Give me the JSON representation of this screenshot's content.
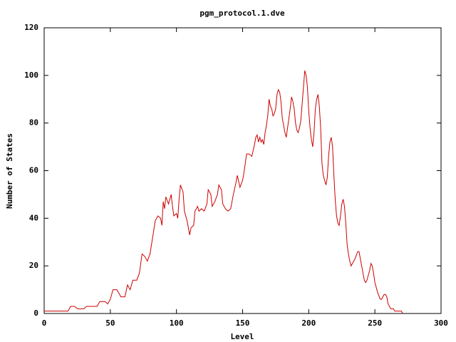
{
  "chart_data": {
    "type": "line",
    "title": "pgm_protocol.1.dve",
    "x_label": "Level",
    "y_label": "Number of States",
    "xlim": [
      0,
      300
    ],
    "xticks": [
      0,
      50,
      100,
      150,
      200,
      250,
      300
    ],
    "ylim": [
      0,
      120
    ],
    "yticks": [
      0,
      20,
      40,
      60,
      80,
      100,
      120
    ],
    "series": [
      {
        "color": "#cc0000",
        "x": [
          0,
          18,
          20,
          23,
          25,
          30,
          32,
          40,
          42,
          46,
          48,
          50,
          52,
          55,
          57,
          58,
          61,
          63,
          65,
          67,
          70,
          72,
          74,
          76,
          78,
          80,
          82,
          84,
          86,
          88,
          89,
          90,
          91,
          92,
          94,
          96,
          97,
          98,
          100,
          101,
          102,
          103,
          105,
          106,
          108,
          110,
          111,
          113,
          114,
          116,
          117,
          119,
          121,
          123,
          124,
          126,
          127,
          129,
          131,
          132,
          134,
          135,
          137,
          139,
          141,
          143,
          145,
          146,
          148,
          150,
          151,
          153,
          155,
          157,
          159,
          160,
          161,
          162,
          163,
          164,
          165,
          166,
          167,
          168,
          169,
          170,
          171,
          172,
          173,
          174,
          175,
          176,
          177,
          178,
          179,
          180,
          182,
          183,
          185,
          186,
          187,
          188,
          189,
          190,
          191,
          192,
          193,
          194,
          195,
          196,
          197,
          198,
          199,
          200,
          201,
          202,
          203,
          204,
          205,
          206,
          207,
          208,
          209,
          210,
          211,
          212,
          213,
          214,
          215,
          216,
          217,
          218,
          219,
          220,
          221,
          222,
          223,
          224,
          225,
          226,
          227,
          228,
          229,
          230,
          231,
          232,
          233,
          235,
          237,
          238,
          239,
          240,
          241,
          242,
          243,
          244,
          246,
          247,
          248,
          249,
          250,
          252,
          254,
          255,
          256,
          257,
          258,
          259,
          260,
          261,
          262,
          264,
          265,
          270,
          271
        ],
        "values": [
          1,
          1,
          3,
          3,
          2,
          2,
          3,
          3,
          5,
          5,
          4,
          6,
          10,
          10,
          8,
          7,
          7,
          12,
          10,
          14,
          14,
          17,
          25,
          24,
          22,
          25,
          32,
          39,
          41,
          40,
          37,
          47,
          44,
          49,
          46,
          50,
          45,
          41,
          42,
          40,
          48,
          54,
          51,
          43,
          39,
          33,
          36,
          37,
          43,
          45,
          43,
          44,
          43,
          46,
          52,
          50,
          45,
          47,
          50,
          54,
          52,
          46,
          44,
          43,
          44,
          50,
          55,
          58,
          53,
          56,
          59,
          67,
          67,
          66,
          71,
          74,
          75,
          72,
          74,
          72,
          73,
          71,
          76,
          79,
          83,
          90,
          87,
          86,
          83,
          84,
          86,
          92,
          94,
          93,
          89,
          82,
          76,
          74,
          82,
          86,
          91,
          89,
          86,
          80,
          77,
          76,
          78,
          81,
          88,
          95,
          102,
          100,
          95,
          85,
          78,
          73,
          70,
          76,
          86,
          90,
          92,
          87,
          78,
          63,
          58,
          56,
          54,
          57,
          66,
          72,
          74,
          70,
          58,
          48,
          41,
          38,
          37,
          41,
          46,
          48,
          45,
          38,
          29,
          25,
          22,
          20,
          21,
          23,
          26,
          26,
          23,
          20,
          17,
          14,
          13,
          14,
          18,
          21,
          20,
          17,
          13,
          9,
          6,
          6,
          7,
          8,
          8,
          7,
          4,
          3,
          2,
          2,
          1,
          1,
          0
        ]
      }
    ]
  }
}
